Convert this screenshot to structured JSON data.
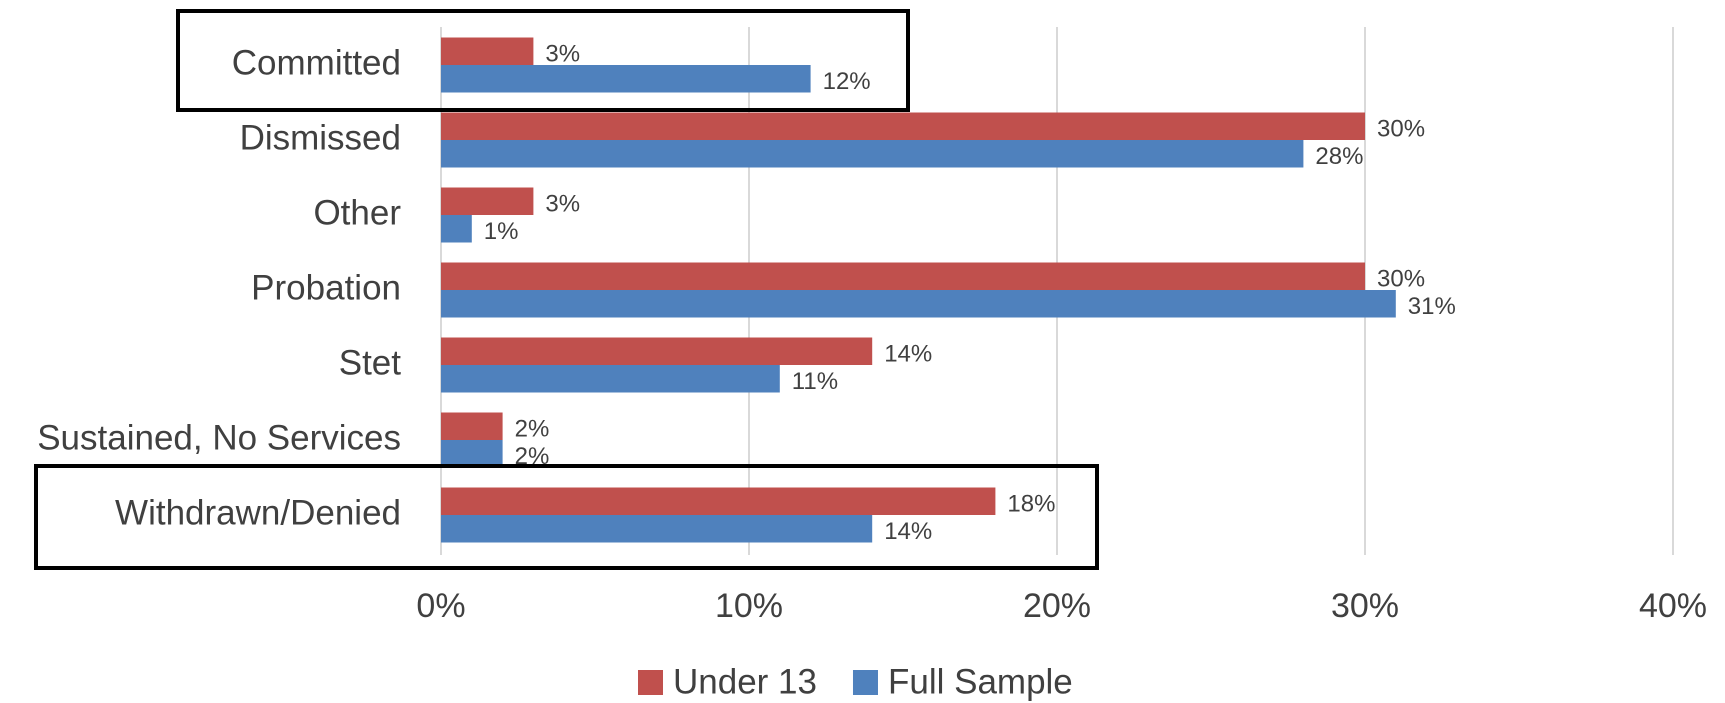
{
  "chart_data": {
    "type": "hbar",
    "categories": [
      "Committed",
      "Dismissed",
      "Other",
      "Probation",
      "Stet",
      "Sustained, No Services",
      "Withdrawn/Denied"
    ],
    "series": [
      {
        "name": "Under 13",
        "color": "#c0504d",
        "values": [
          3,
          30,
          3,
          30,
          14,
          2,
          18
        ],
        "value_labels": [
          "3%",
          "30%",
          "3%",
          "30%",
          "14%",
          "2%",
          "18%"
        ]
      },
      {
        "name": "Full Sample",
        "color": "#4f81bd",
        "values": [
          12,
          28,
          1,
          31,
          11,
          2,
          14
        ],
        "value_labels": [
          "12%",
          "28%",
          "1%",
          "31%",
          "11%",
          "2%",
          "14%"
        ]
      }
    ],
    "xlim": [
      0,
      40
    ],
    "xticks": [
      {
        "value": 0,
        "label": "0%"
      },
      {
        "value": 10,
        "label": "10%"
      },
      {
        "value": 20,
        "label": "20%"
      },
      {
        "value": 30,
        "label": "30%"
      },
      {
        "value": 40,
        "label": "40%"
      }
    ],
    "grid": true,
    "legend": "bottom"
  }
}
